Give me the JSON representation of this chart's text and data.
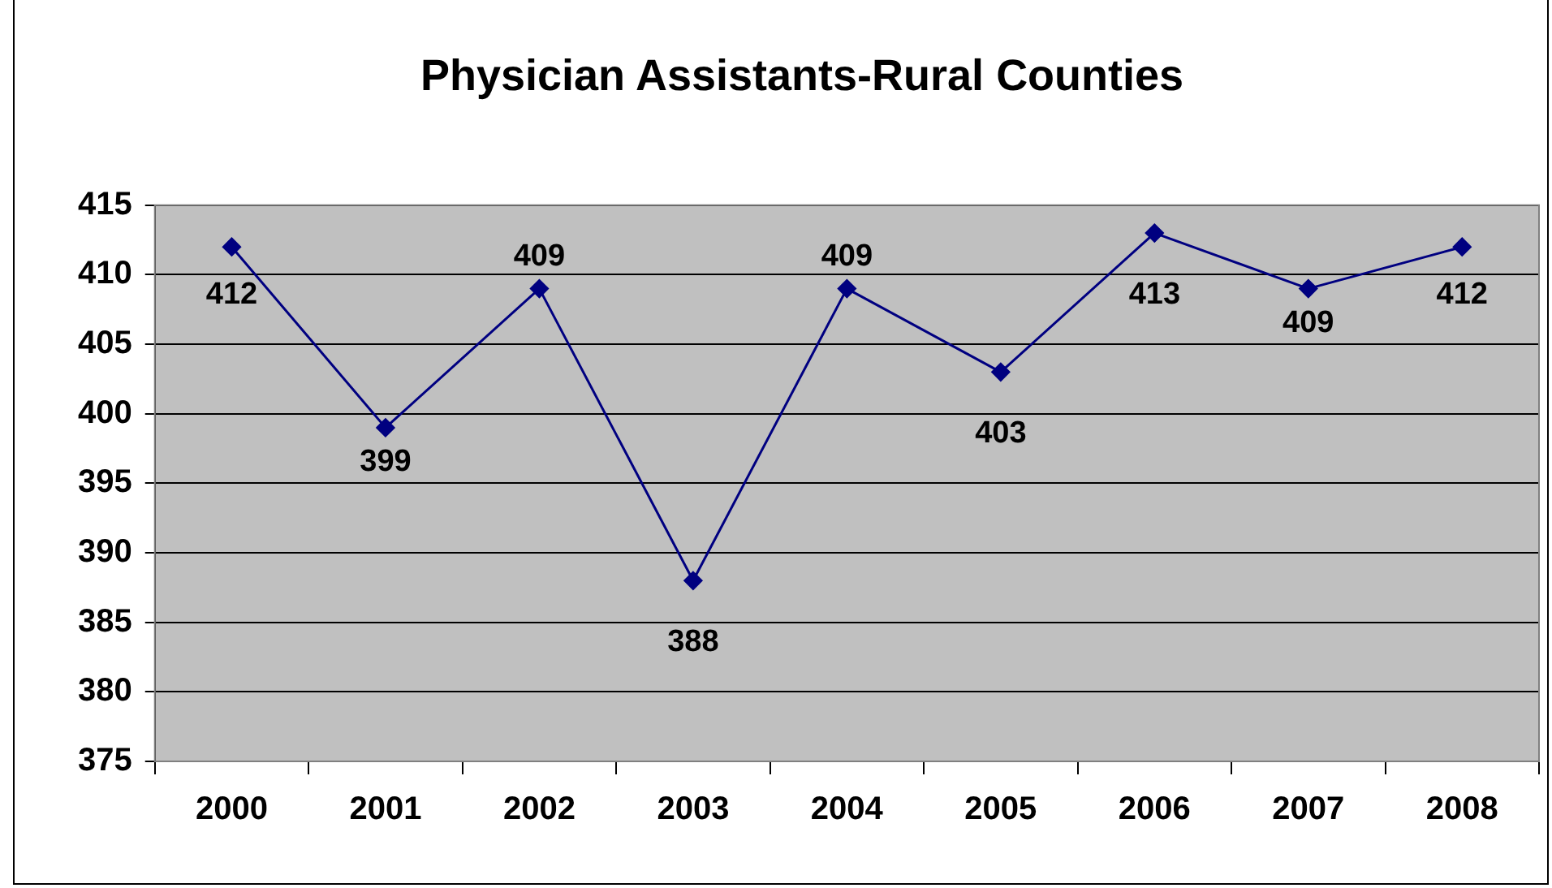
{
  "chart_data": {
    "type": "line",
    "title": "Physician Assistants-Rural Counties",
    "categories": [
      "2000",
      "2001",
      "2002",
      "2003",
      "2004",
      "2005",
      "2006",
      "2007",
      "2008"
    ],
    "series": [
      {
        "color": "#000080",
        "values": [
          412,
          399,
          409,
          388,
          409,
          403,
          413,
          409,
          412
        ]
      }
    ],
    "ylim": [
      375,
      415
    ],
    "yticks": [
      375,
      380,
      385,
      390,
      395,
      400,
      405,
      410,
      415
    ],
    "grid": "y",
    "legend": false,
    "marker": "diamond",
    "line_style": "solid",
    "data_labels": true
  }
}
